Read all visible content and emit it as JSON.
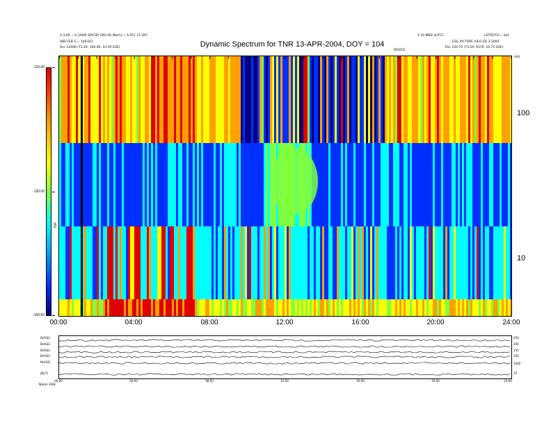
{
  "chart_data": {
    "type": "heatmap",
    "title": "Dynamic Spectrum for TNR 13-APR-2004, DOY = 104",
    "x_ticks": [
      "00:00",
      "04:00",
      "08:00",
      "12:00",
      "16:00",
      "20:00",
      "24:00"
    ],
    "x_range_hours": [
      0,
      24
    ],
    "y_scale": "log",
    "y_ticks_right": [
      "100",
      "10"
    ],
    "y_unit_label": "kHz",
    "colorbar": {
      "label": "TNR",
      "ticks": [
        "-110.00",
        "-130.00",
        "-150.00"
      ],
      "range": [
        -150,
        -110
      ],
      "colors": [
        "#000080",
        "#0030ff",
        "#00ffff",
        "#80ff40",
        "#ffff00",
        "#ffa000",
        "#e00000"
      ]
    },
    "marker_label": "DEVICE"
  },
  "header_left": {
    "line1": "A 3.00 = 0 (2000 SP/CSR SPD 00 )Norh/ ~ A FEC F2 SPC",
    "line2": "ABS FEB 2 = 1b0(1E)",
    "line3": "Rsc   12406 (73.29, 100.46, 10.59 GSE)"
  },
  "header_right": {
    "line1a": "1:10 MBD 2UTCC",
    "line1b": "LSTROTH = 1b1",
    "line2": "ESS_PICTURE  VIEO ZD 3.2000",
    "line3": "Rsc   120.70 (73.29, 9376, 10.75 GSE)"
  },
  "bottom_panel": {
    "left_labels": [
      "B(AGE)",
      "B(AGE)",
      "B(AGE)",
      "B(AGE)",
      "N(AGE)",
      "|B|(T)"
    ],
    "right_labels": [
      "250",
      "200",
      "150",
      "100",
      "1000",
      "70"
    ],
    "x_ticks": [
      "00:00",
      "04:00",
      "08:00",
      "12:00",
      "16:00",
      "20:00",
      "24:00"
    ],
    "footer_label": "Nolan   ARB"
  }
}
